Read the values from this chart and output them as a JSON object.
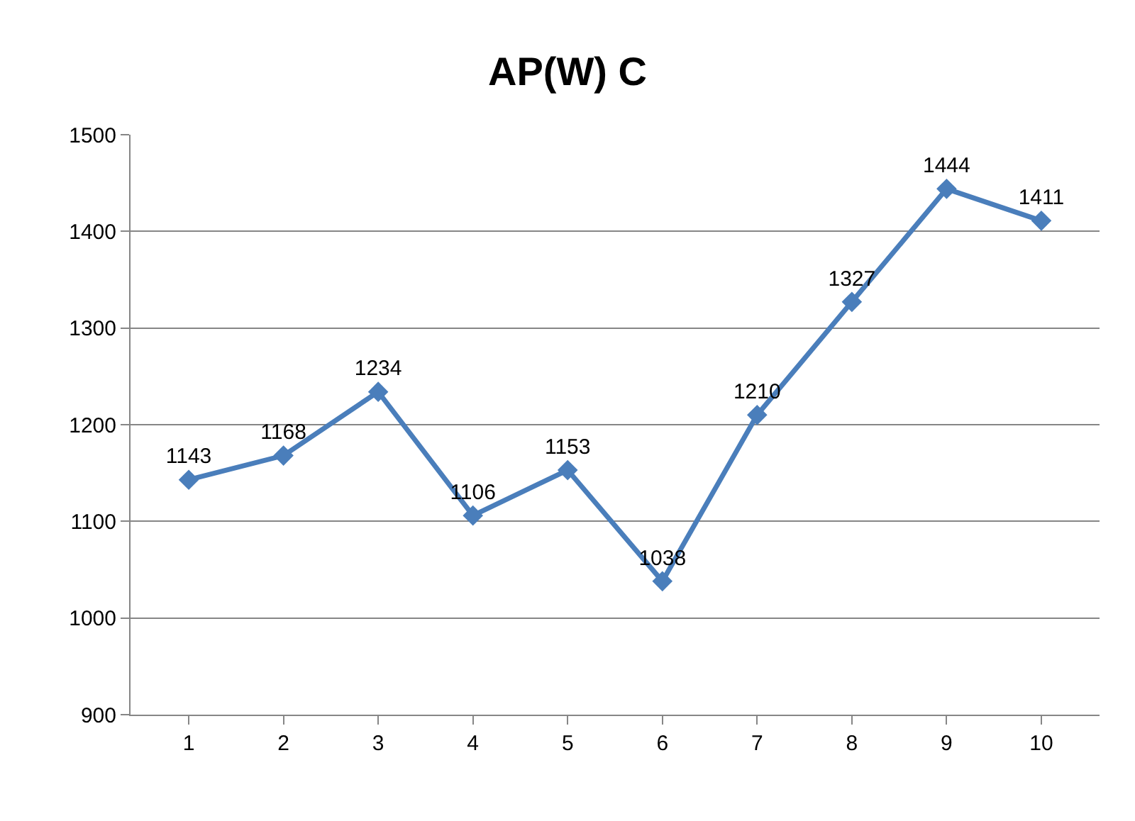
{
  "chart_data": {
    "type": "line",
    "title": "AP(W) C",
    "categories": [
      "1",
      "2",
      "3",
      "4",
      "5",
      "6",
      "7",
      "8",
      "9",
      "10"
    ],
    "series": [
      {
        "color": "#4a7ebb",
        "values": [
          1143,
          1168,
          1234,
          1106,
          1153,
          1038,
          1210,
          1327,
          1444,
          1411
        ]
      }
    ],
    "ylim": [
      900,
      1500
    ],
    "yticks": [
      900,
      1000,
      1100,
      1200,
      1300,
      1400,
      1500
    ],
    "grid": "y",
    "marker": "diamond",
    "line_style": "solid",
    "data_labels": true,
    "legend": false
  }
}
